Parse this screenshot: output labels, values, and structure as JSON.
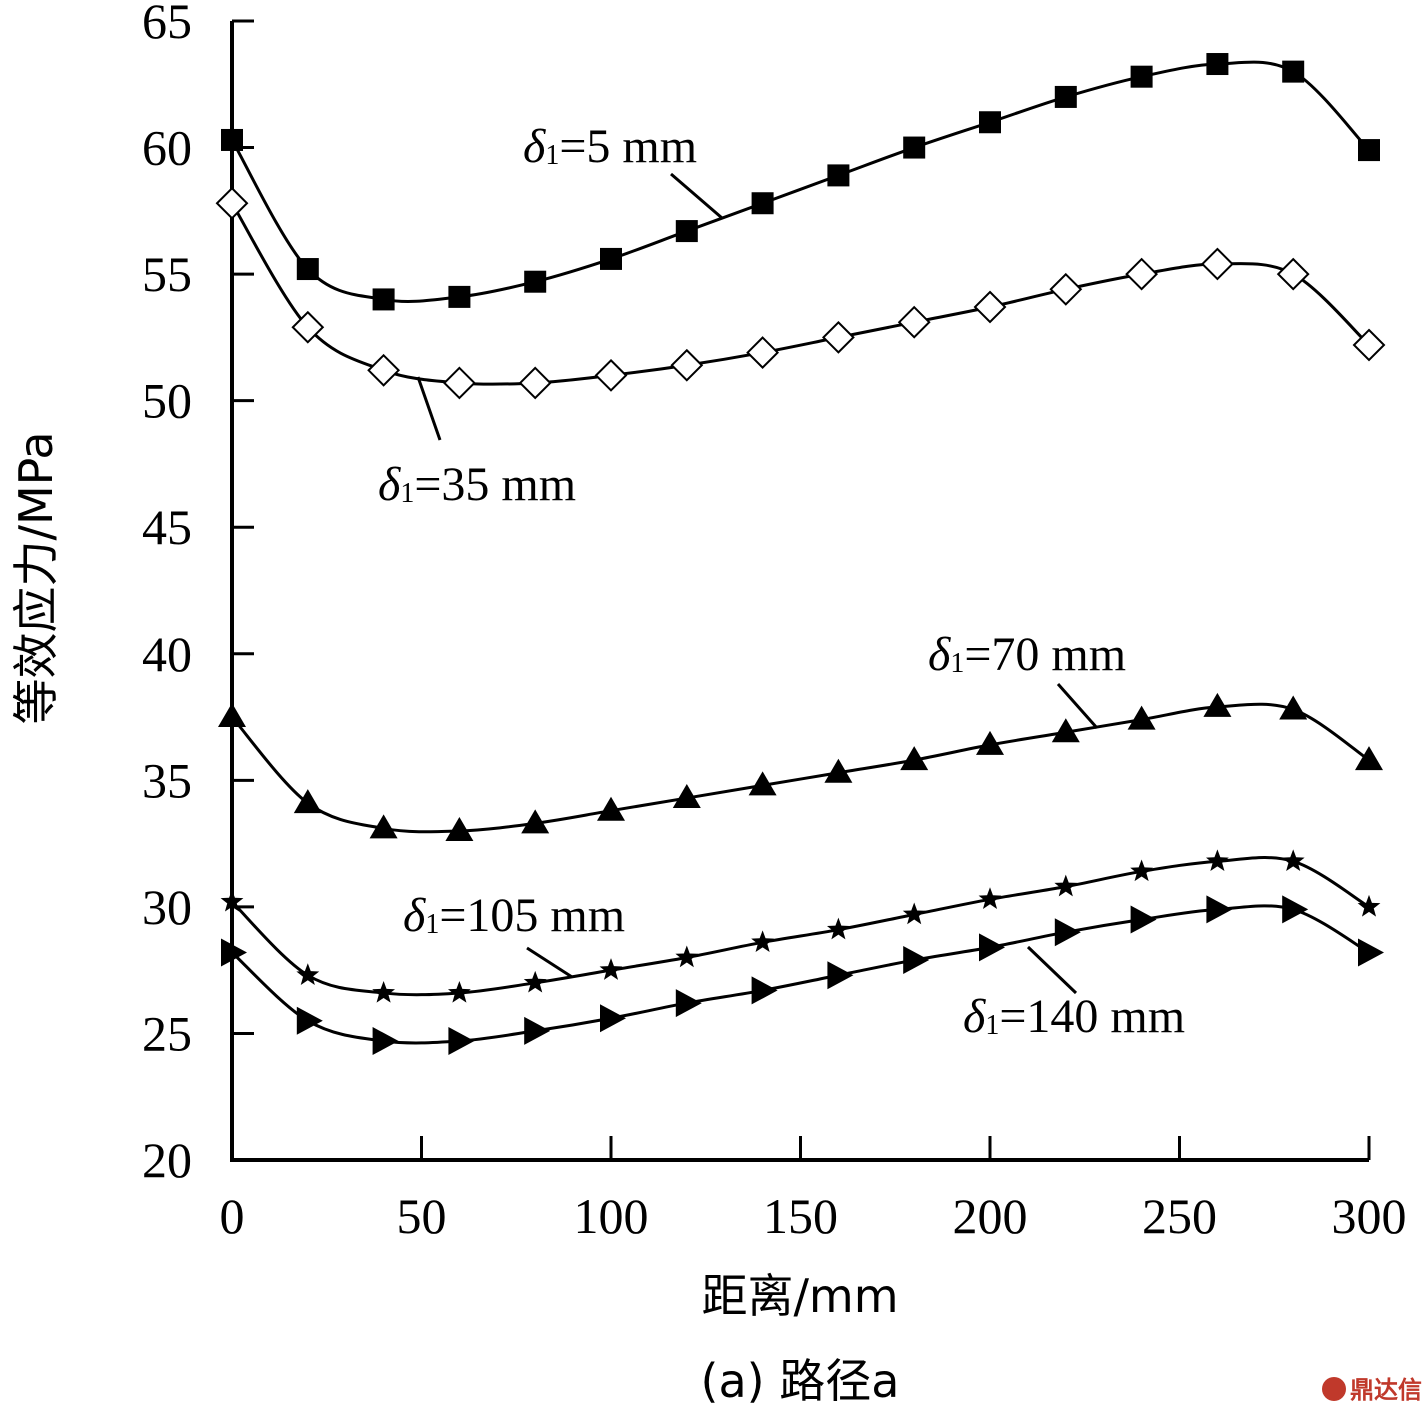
{
  "chart_data": {
    "type": "line",
    "xlabel": "距离/mm",
    "ylabel": "等效应力/MPa",
    "caption": "(a) 路径a",
    "xlim": [
      0,
      300
    ],
    "ylim": [
      20,
      65
    ],
    "xticks": [
      0,
      50,
      100,
      150,
      200,
      250,
      300
    ],
    "yticks": [
      20,
      25,
      30,
      35,
      40,
      45,
      50,
      55,
      60,
      65
    ],
    "grid": false,
    "x": [
      0,
      20,
      40,
      60,
      80,
      100,
      120,
      140,
      160,
      180,
      200,
      220,
      240,
      260,
      280,
      300
    ],
    "series": [
      {
        "name": "δ1=5 mm",
        "label_symbol": "δ",
        "label_sub": "1",
        "label_rest": "=5 mm",
        "marker": "square-filled",
        "values": [
          60.3,
          55.2,
          54.0,
          54.1,
          54.7,
          55.6,
          56.7,
          57.8,
          58.9,
          60.0,
          61.0,
          62.0,
          62.8,
          63.3,
          63.0,
          59.9
        ]
      },
      {
        "name": "δ1=35 mm",
        "label_symbol": "δ",
        "label_sub": "1",
        "label_rest": "=35 mm",
        "marker": "diamond-open",
        "values": [
          57.8,
          52.9,
          51.2,
          50.7,
          50.7,
          51.0,
          51.4,
          51.9,
          52.5,
          53.1,
          53.7,
          54.4,
          55.0,
          55.4,
          55.0,
          52.2
        ]
      },
      {
        "name": "δ1=70 mm",
        "label_symbol": "δ",
        "label_sub": "1",
        "label_rest": "=70 mm",
        "marker": "triangle-up-filled",
        "values": [
          37.5,
          34.1,
          33.1,
          33.0,
          33.3,
          33.8,
          34.3,
          34.8,
          35.3,
          35.8,
          36.4,
          36.9,
          37.4,
          37.9,
          37.8,
          35.8
        ]
      },
      {
        "name": "δ1=105 mm",
        "label_symbol": "δ",
        "label_sub": "1",
        "label_rest": "=105 mm",
        "marker": "star-filled",
        "values": [
          30.2,
          27.3,
          26.6,
          26.6,
          27.0,
          27.5,
          28.0,
          28.6,
          29.1,
          29.7,
          30.3,
          30.8,
          31.4,
          31.8,
          31.8,
          30.0
        ]
      },
      {
        "name": "δ1=140 mm",
        "label_symbol": "δ",
        "label_sub": "1",
        "label_rest": "=140 mm",
        "marker": "triangle-right-filled",
        "values": [
          28.2,
          25.5,
          24.7,
          24.7,
          25.1,
          25.6,
          26.2,
          26.7,
          27.3,
          27.9,
          28.4,
          29.0,
          29.5,
          29.9,
          29.9,
          28.2
        ]
      }
    ]
  },
  "watermark": "鼎达信"
}
